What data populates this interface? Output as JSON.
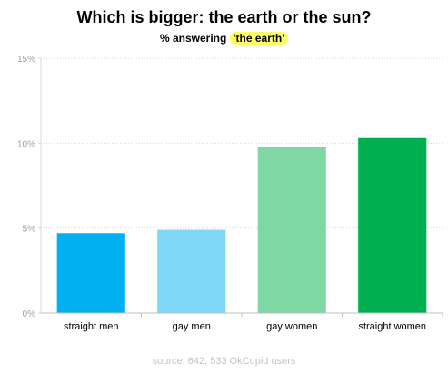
{
  "chart_data": {
    "type": "bar",
    "title": "Which is bigger: the earth or the sun?",
    "subtitle_prefix": "% answering",
    "subtitle_highlight": "'the earth'",
    "categories": [
      "straight men",
      "gay men",
      "gay women",
      "straight women"
    ],
    "values": [
      4.7,
      4.9,
      9.8,
      10.3
    ],
    "colors": [
      "#00b0f0",
      "#7fd7f7",
      "#7fd8a3",
      "#00b050"
    ],
    "ylim": [
      0,
      15
    ],
    "yticks": [
      0,
      5,
      10,
      15
    ],
    "ytick_labels": [
      "0%",
      "5%",
      "10%",
      "15%"
    ],
    "xlabel": "",
    "ylabel": "",
    "grid": true,
    "source": "source: 642, 533 OkCupid users"
  }
}
